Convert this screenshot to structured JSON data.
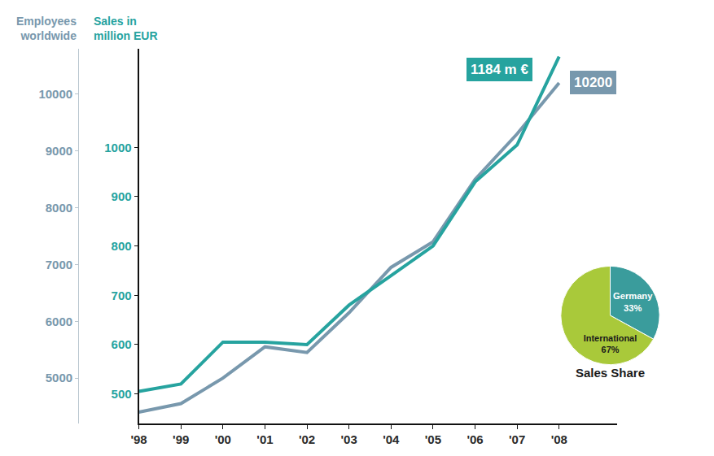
{
  "chart_data": [
    {
      "type": "line",
      "categories": [
        "'98",
        "'99",
        "'00",
        "'01",
        "'02",
        "'03",
        "'04",
        "'05",
        "'06",
        "'07",
        "'08"
      ],
      "series": [
        {
          "name": "Employees worldwide",
          "color": "#7898ad",
          "axis": "y",
          "values": [
            4400,
            4550,
            5000,
            5550,
            5450,
            6150,
            6950,
            7400,
            8500,
            9300,
            10200
          ]
        },
        {
          "name": "Sales in million EUR",
          "color": "#26a39f",
          "axis": "y2",
          "values": [
            505,
            520,
            605,
            605,
            600,
            680,
            740,
            800,
            930,
            1005,
            1184
          ]
        }
      ],
      "ylim": [
        4200,
        10800
      ],
      "yticks": [
        5000,
        6000,
        7000,
        8000,
        9000,
        10000
      ],
      "y2lim": [
        440,
        1200
      ],
      "y2ticks": [
        500,
        600,
        700,
        800,
        900,
        1000
      ],
      "annotations": [
        {
          "text": "1184 m €",
          "series": "Sales in million EUR"
        },
        {
          "text": "10200",
          "series": "Employees worldwide"
        }
      ],
      "grid": false
    },
    {
      "type": "pie",
      "title": "Sales Share",
      "categories": [
        "Germany",
        "International"
      ],
      "values": [
        33,
        67
      ],
      "value_labels": [
        "33%",
        "67%"
      ],
      "colors": [
        "#3a9c9c",
        "#a9c93a"
      ],
      "data_labels": true
    }
  ]
}
